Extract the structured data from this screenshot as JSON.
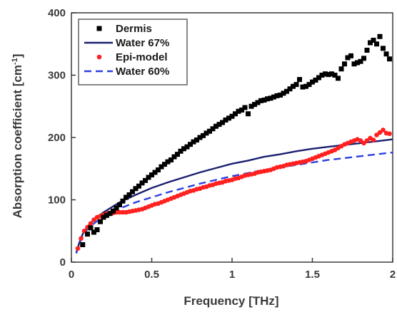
{
  "chart_data": {
    "type": "line",
    "xlabel": "Frequency [THz]",
    "ylabel_main": "Absorption coefficient [cm",
    "ylabel_sup": "-1",
    "ylabel_close": "]",
    "xlim": [
      0,
      2
    ],
    "ylim": [
      0,
      400
    ],
    "xticks": [
      0,
      0.5,
      1,
      1.5,
      2
    ],
    "xtick_labels": [
      "0",
      "0.5",
      "1",
      "1.5",
      "2"
    ],
    "yticks": [
      0,
      100,
      200,
      300,
      400
    ],
    "ytick_labels": [
      "0",
      "100",
      "200",
      "300",
      "400"
    ],
    "grid": false,
    "legend_position": "top-left",
    "series": [
      {
        "name": "Dermis",
        "style": "square-markers",
        "color": "#000000",
        "x": [
          0.07,
          0.1,
          0.12,
          0.14,
          0.16,
          0.18,
          0.2,
          0.22,
          0.24,
          0.26,
          0.28,
          0.3,
          0.32,
          0.34,
          0.36,
          0.38,
          0.4,
          0.42,
          0.44,
          0.46,
          0.48,
          0.5,
          0.52,
          0.54,
          0.56,
          0.58,
          0.6,
          0.62,
          0.64,
          0.66,
          0.68,
          0.7,
          0.72,
          0.74,
          0.76,
          0.78,
          0.8,
          0.82,
          0.84,
          0.86,
          0.88,
          0.9,
          0.92,
          0.94,
          0.96,
          0.98,
          1.0,
          1.02,
          1.04,
          1.06,
          1.08,
          1.1,
          1.12,
          1.14,
          1.16,
          1.18,
          1.2,
          1.22,
          1.24,
          1.26,
          1.28,
          1.3,
          1.32,
          1.34,
          1.36,
          1.38,
          1.4,
          1.42,
          1.44,
          1.46,
          1.48,
          1.5,
          1.52,
          1.54,
          1.56,
          1.58,
          1.6,
          1.62,
          1.64,
          1.66,
          1.68,
          1.7,
          1.72,
          1.74,
          1.76,
          1.78,
          1.8,
          1.82,
          1.84,
          1.86,
          1.88,
          1.9,
          1.92,
          1.94,
          1.96,
          1.98
        ],
        "y": [
          28,
          45,
          55,
          48,
          52,
          65,
          72,
          75,
          78,
          82,
          87,
          92,
          98,
          104,
          108,
          113,
          118,
          122,
          127,
          131,
          136,
          140,
          144,
          148,
          153,
          157,
          161,
          164,
          169,
          173,
          178,
          182,
          185,
          189,
          193,
          196,
          200,
          203,
          207,
          210,
          214,
          218,
          221,
          224,
          228,
          231,
          234,
          238,
          242,
          244,
          248,
          238,
          250,
          253,
          256,
          259,
          260,
          262,
          263,
          265,
          267,
          268,
          271,
          274,
          278,
          282,
          285,
          293,
          281,
          282,
          285,
          289,
          292,
          296,
          300,
          302,
          301,
          302,
          300,
          295,
          310,
          318,
          328,
          331,
          318,
          320,
          322,
          327,
          340,
          352,
          356,
          350,
          362,
          343,
          334,
          326
        ]
      },
      {
        "name": "Water 67%",
        "style": "solid-line",
        "color": "#1c2070",
        "x": [
          0.03,
          0.05,
          0.07,
          0.1,
          0.13,
          0.16,
          0.2,
          0.25,
          0.3,
          0.35,
          0.4,
          0.5,
          0.6,
          0.7,
          0.8,
          0.9,
          1.0,
          1.1,
          1.2,
          1.3,
          1.4,
          1.5,
          1.6,
          1.7,
          1.8,
          1.9,
          2.0
        ],
        "y": [
          15,
          32,
          45,
          57,
          65,
          72,
          80,
          88,
          96,
          102,
          108,
          119,
          128,
          136,
          144,
          151,
          158,
          163,
          169,
          173,
          178,
          182,
          185,
          188,
          191,
          194,
          197
        ]
      },
      {
        "name": "Epi-model",
        "style": "circle-markers",
        "color": "#ff2020",
        "x": [
          0.04,
          0.06,
          0.08,
          0.1,
          0.12,
          0.14,
          0.16,
          0.18,
          0.2,
          0.22,
          0.24,
          0.26,
          0.28,
          0.3,
          0.32,
          0.34,
          0.36,
          0.38,
          0.4,
          0.42,
          0.44,
          0.46,
          0.48,
          0.5,
          0.52,
          0.54,
          0.56,
          0.58,
          0.6,
          0.62,
          0.64,
          0.66,
          0.68,
          0.7,
          0.72,
          0.74,
          0.76,
          0.78,
          0.8,
          0.82,
          0.84,
          0.86,
          0.88,
          0.9,
          0.92,
          0.94,
          0.96,
          0.98,
          1.0,
          1.02,
          1.04,
          1.06,
          1.08,
          1.1,
          1.12,
          1.14,
          1.16,
          1.18,
          1.2,
          1.22,
          1.24,
          1.26,
          1.28,
          1.3,
          1.32,
          1.34,
          1.36,
          1.38,
          1.4,
          1.42,
          1.44,
          1.46,
          1.48,
          1.5,
          1.52,
          1.54,
          1.56,
          1.58,
          1.6,
          1.62,
          1.64,
          1.66,
          1.68,
          1.7,
          1.72,
          1.74,
          1.76,
          1.78,
          1.8,
          1.82,
          1.84,
          1.86,
          1.88,
          1.9,
          1.92,
          1.94,
          1.96,
          1.98
        ],
        "y": [
          22,
          38,
          50,
          56,
          62,
          68,
          72,
          74,
          76,
          78,
          79,
          79,
          80,
          80,
          80,
          80,
          81,
          82,
          83,
          84,
          85,
          87,
          89,
          91,
          93,
          94,
          96,
          98,
          100,
          102,
          104,
          106,
          108,
          110,
          112,
          114,
          115,
          117,
          118,
          120,
          121,
          123,
          124,
          126,
          127,
          128,
          130,
          131,
          132,
          134,
          135,
          137,
          139,
          140,
          141,
          142,
          144,
          145,
          146,
          147,
          148,
          150,
          152,
          153,
          154,
          156,
          157,
          158,
          159,
          160,
          161,
          162,
          164,
          166,
          168,
          170,
          172,
          174,
          176,
          178,
          180,
          183,
          186,
          189,
          191,
          193,
          195,
          197,
          195,
          191,
          195,
          199,
          196,
          204,
          208,
          212,
          207,
          206
        ]
      },
      {
        "name": "Water 60%",
        "style": "dashed-line",
        "color": "#2a3fe0",
        "x": [
          0.03,
          0.05,
          0.07,
          0.1,
          0.13,
          0.16,
          0.2,
          0.25,
          0.3,
          0.35,
          0.4,
          0.5,
          0.6,
          0.7,
          0.8,
          0.9,
          1.0,
          1.1,
          1.2,
          1.3,
          1.4,
          1.5,
          1.6,
          1.7,
          1.8,
          1.9,
          2.0
        ],
        "y": [
          14,
          30,
          42,
          53,
          60,
          66,
          73,
          80,
          86,
          91,
          96,
          104,
          112,
          119,
          126,
          132,
          138,
          143,
          148,
          152,
          156,
          160,
          164,
          167,
          170,
          173,
          176
        ]
      }
    ]
  }
}
